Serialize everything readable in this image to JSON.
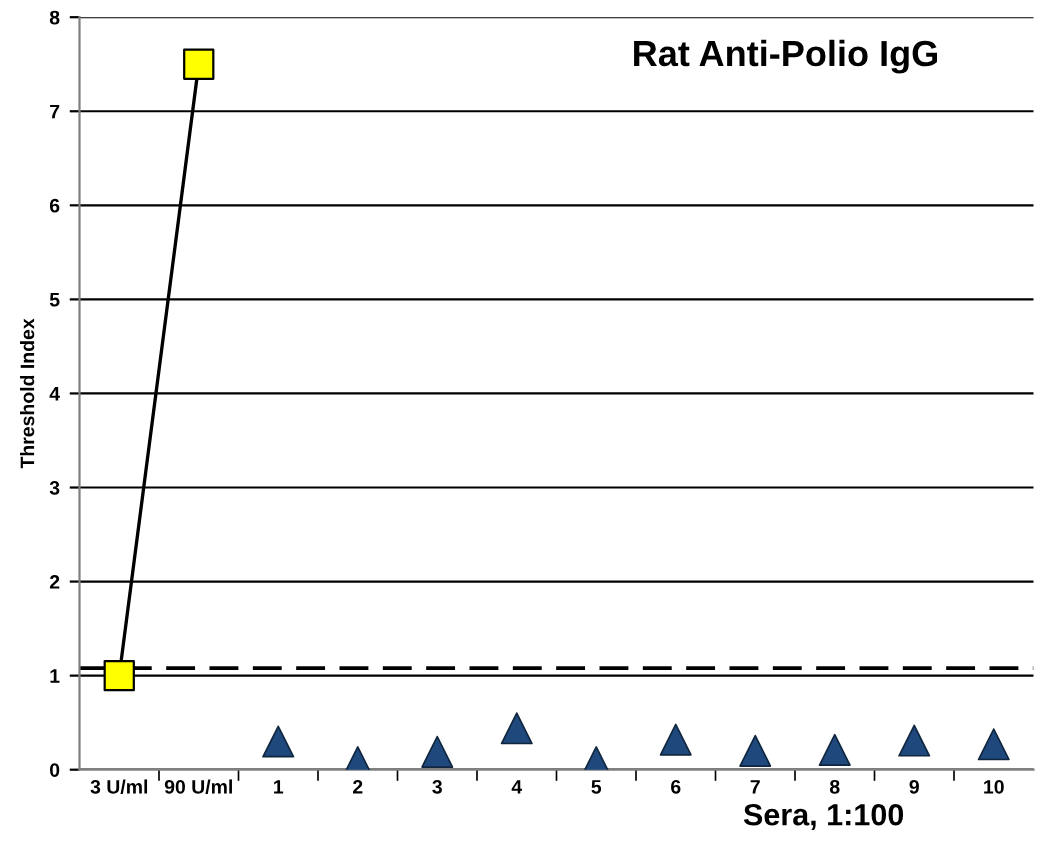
{
  "chart_data": {
    "type": "line",
    "title": "Rat Anti-Polio IgG",
    "xlabel": "Sera, 1:100",
    "ylabel": "Threshold Index",
    "categories": [
      "3 U/ml",
      "90 U/ml",
      "1",
      "2",
      "3",
      "4",
      "5",
      "6",
      "7",
      "8",
      "9",
      "10"
    ],
    "series": [
      {
        "marker": "square",
        "color": "#ffff00",
        "values": [
          1.0,
          7.5,
          null,
          null,
          null,
          null,
          null,
          null,
          null,
          null,
          null,
          null
        ]
      },
      {
        "type": "scatter",
        "marker": "triangle",
        "color": "#1f497d",
        "values": [
          null,
          null,
          0.3,
          0.08,
          0.19,
          0.44,
          0.08,
          0.32,
          0.2,
          0.21,
          0.31,
          0.27
        ]
      }
    ],
    "ylim": [
      0,
      8
    ],
    "yticks": [
      0,
      1,
      2,
      3,
      4,
      5,
      6,
      7,
      8
    ],
    "grid": "y",
    "ref_lines": [
      {
        "axis": "y",
        "value": 1.08,
        "label": null,
        "line_style": "dashed",
        "color": "#000000"
      }
    ]
  }
}
